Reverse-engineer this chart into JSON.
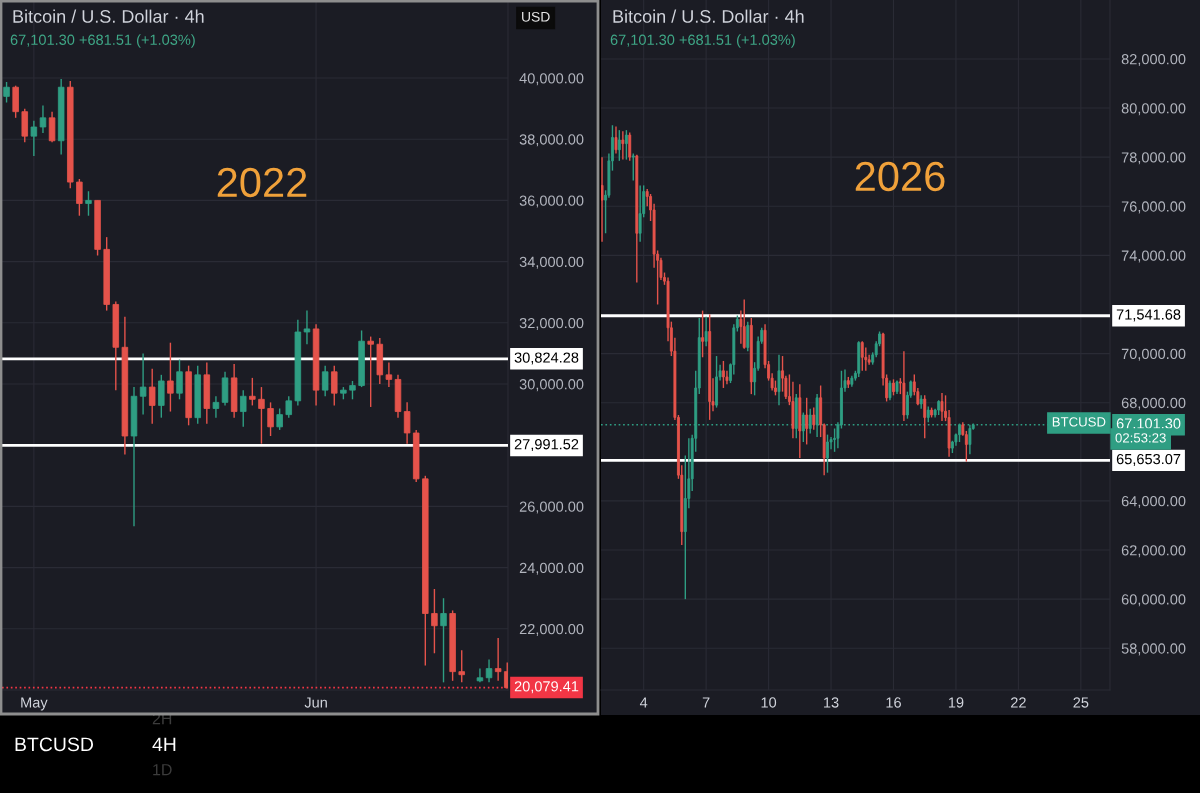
{
  "chart_data": [
    {
      "type": "candlestick",
      "title": "Bitcoin / U.S. Dollar · 4h",
      "subtitle": "67,101.30 +681.51 (+1.03%)",
      "x": [
        "2022-04-28",
        "2022-04-29",
        "2022-04-30",
        "2022-05-01",
        "2022-05-02",
        "2022-05-03",
        "2022-05-04",
        "2022-05-05",
        "2022-05-06",
        "2022-05-07",
        "2022-05-08",
        "2022-05-09",
        "2022-05-10",
        "2022-05-11",
        "2022-05-12",
        "2022-05-13",
        "2022-05-14",
        "2022-05-15",
        "2022-05-16",
        "2022-05-17",
        "2022-05-18",
        "2022-05-19",
        "2022-05-20",
        "2022-05-21",
        "2022-05-22",
        "2022-05-23",
        "2022-05-24",
        "2022-05-25",
        "2022-05-26",
        "2022-05-27",
        "2022-05-28",
        "2022-05-29",
        "2022-05-30",
        "2022-05-31",
        "2022-06-01",
        "2022-06-02",
        "2022-06-03",
        "2022-06-04",
        "2022-06-05",
        "2022-06-06",
        "2022-06-07",
        "2022-06-08",
        "2022-06-09",
        "2022-06-10",
        "2022-06-11",
        "2022-06-12",
        "2022-06-13",
        "2022-06-14",
        "2022-06-15",
        "2022-06-16",
        "2022-06-17",
        "2022-06-19",
        "2022-06-20",
        "2022-06-21",
        "2022-06-22"
      ],
      "ohlc": [
        [
          39400,
          39870,
          39200,
          39700
        ],
        [
          39700,
          39750,
          38700,
          38900
        ],
        [
          38900,
          39000,
          37900,
          38100
        ],
        [
          38100,
          38600,
          37450,
          38400
        ],
        [
          38400,
          39100,
          38200,
          38700
        ],
        [
          38700,
          38900,
          37900,
          37950
        ],
        [
          37950,
          39970,
          37500,
          39700
        ],
        [
          39700,
          39900,
          36400,
          36600
        ],
        [
          36600,
          36700,
          35500,
          35900
        ],
        [
          35900,
          36300,
          35500,
          36000
        ],
        [
          36000,
          36000,
          34200,
          34400
        ],
        [
          34400,
          34800,
          32400,
          32600
        ],
        [
          32600,
          32700,
          29800,
          31200
        ],
        [
          31200,
          32200,
          27700,
          28300
        ],
        [
          28300,
          29900,
          25350,
          29600
        ],
        [
          29600,
          31000,
          29000,
          29900
        ],
        [
          29900,
          30500,
          28700,
          29300
        ],
        [
          29300,
          30300,
          28900,
          30100
        ],
        [
          30100,
          31350,
          29100,
          29700
        ],
        [
          29700,
          30800,
          29500,
          30400
        ],
        [
          30400,
          30600,
          28650,
          28900
        ],
        [
          28900,
          30600,
          28700,
          30300
        ],
        [
          30300,
          30700,
          28700,
          29200
        ],
        [
          29200,
          29600,
          28900,
          29400
        ],
        [
          29400,
          30400,
          29300,
          30200
        ],
        [
          30200,
          30650,
          28900,
          29100
        ],
        [
          29100,
          29800,
          28600,
          29600
        ],
        [
          29600,
          30200,
          29300,
          29500
        ],
        [
          29500,
          29900,
          28050,
          29200
        ],
        [
          29200,
          29400,
          28300,
          28600
        ],
        [
          28600,
          29200,
          28500,
          29000
        ],
        [
          29000,
          29600,
          28900,
          29450
        ],
        [
          29450,
          32100,
          29300,
          31700
        ],
        [
          31700,
          32400,
          31300,
          31800
        ],
        [
          31800,
          31950,
          29300,
          29800
        ],
        [
          29800,
          30600,
          29600,
          30400
        ],
        [
          30400,
          30600,
          29300,
          29700
        ],
        [
          29700,
          29900,
          29500,
          29800
        ],
        [
          29800,
          30100,
          29500,
          29950
        ],
        [
          29950,
          31750,
          29900,
          31400
        ],
        [
          31400,
          31550,
          29250,
          31300
        ],
        [
          31300,
          31500,
          30000,
          30300
        ],
        [
          30300,
          30700,
          29900,
          30150
        ],
        [
          30150,
          30300,
          28900,
          29100
        ],
        [
          29100,
          29400,
          28050,
          28400
        ],
        [
          28400,
          28500,
          26800,
          26900
        ],
        [
          26900,
          27000,
          20800,
          22500
        ],
        [
          22500,
          23300,
          21200,
          22100
        ],
        [
          22100,
          23000,
          20250,
          22500
        ],
        [
          22500,
          22600,
          20300,
          20600
        ],
        [
          20600,
          21300,
          20250,
          20500
        ],
        [
          20300,
          20700,
          20250,
          20400
        ],
        [
          20400,
          21000,
          20250,
          20700
        ],
        [
          20700,
          21700,
          20300,
          20600
        ],
        [
          20600,
          20900,
          20050,
          20079.41
        ]
      ],
      "xlim": [
        "2022-04-27T12:00",
        "2022-06-22T02:00"
      ],
      "xticks": [
        {
          "value": "2022-05-01",
          "label": "May"
        },
        {
          "value": "2022-06-01",
          "label": "Jun"
        }
      ],
      "ylim": [
        20000,
        42550
      ],
      "yticks": [
        {
          "value": 22000,
          "label": "22,000.00"
        },
        {
          "value": 24000,
          "label": "24,000.00"
        },
        {
          "value": 26000,
          "label": "26,000.00"
        },
        {
          "value": 30000,
          "label": "30,000.00"
        },
        {
          "value": 32000,
          "label": "32,000.00"
        },
        {
          "value": 34000,
          "label": "34,000.00"
        },
        {
          "value": 36000,
          "label": "36,000.00"
        },
        {
          "value": 38000,
          "label": "38,000.00"
        },
        {
          "value": 40000,
          "label": "40,000.00"
        }
      ],
      "grid": true,
      "ref_lines": [
        {
          "axis": "y",
          "value": 30824.28,
          "label": "30,824.28",
          "color": "#ffffff"
        },
        {
          "axis": "y",
          "value": 27991.52,
          "label": "27,991.52",
          "color": "#ffffff"
        },
        {
          "axis": "y",
          "value": 20079.41,
          "label": "20,079.41",
          "color": "#f23645",
          "line_style": "dotted"
        }
      ],
      "annotations": [
        "2022",
        "USD",
        "BTCUSD",
        "4H",
        "2H",
        "1D"
      ]
    },
    {
      "type": "candlestick",
      "title": "Bitcoin / U.S. Dollar · 4h",
      "subtitle": "67,101.30 +681.51 (+1.03%)",
      "x": [
        2,
        2.17,
        2.33,
        2.5,
        2.67,
        2.83,
        3,
        3.17,
        3.33,
        3.5,
        3.67,
        3.83,
        4,
        4.17,
        4.33,
        4.5,
        4.67,
        4.83,
        5,
        5.17,
        5.33,
        5.5,
        5.67,
        5.83,
        6,
        6.17,
        6.33,
        6.5,
        6.67,
        6.83,
        7,
        7.17,
        7.33,
        7.5,
        7.67,
        7.83,
        8,
        8.17,
        8.33,
        8.5,
        8.67,
        8.83,
        9,
        9.17,
        9.33,
        9.5,
        9.67,
        9.83,
        10,
        10.17,
        10.33,
        10.5,
        10.67,
        10.83,
        11,
        11.17,
        11.33,
        11.5,
        11.67,
        11.83,
        12,
        12.17,
        12.33,
        12.5,
        12.67,
        12.83,
        13,
        13.17,
        13.33,
        13.5,
        13.67,
        13.83,
        14,
        14.17,
        14.33,
        14.5,
        14.67,
        14.83,
        15,
        15.17,
        15.33,
        15.5,
        15.67,
        15.83,
        16,
        16.17,
        16.33,
        16.5,
        16.67,
        16.83,
        17,
        17.17,
        17.33,
        17.5,
        17.67,
        17.83,
        18,
        18.17,
        18.33,
        18.5,
        18.67,
        18.83,
        19,
        19.17,
        19.33,
        19.5,
        19.67,
        19.83
      ],
      "ohlc": [
        [
          76850,
          78000,
          74550,
          76250
        ],
        [
          76250,
          76650,
          74900,
          76450
        ],
        [
          76450,
          78150,
          76350,
          77850
        ],
        [
          77850,
          79300,
          77450,
          78800
        ],
        [
          78800,
          79250,
          78150,
          78300
        ],
        [
          78300,
          79100,
          77850,
          78700
        ],
        [
          78700,
          79050,
          77900,
          78550
        ],
        [
          78550,
          79100,
          77900,
          78900
        ],
        [
          78900,
          79000,
          77850,
          78000
        ],
        [
          78000,
          78150,
          77050,
          78050
        ],
        [
          78050,
          78100,
          72900,
          74900
        ],
        [
          74900,
          76850,
          74550,
          75700
        ],
        [
          75700,
          76850,
          75550,
          76600
        ],
        [
          76600,
          76700,
          76000,
          76400
        ],
        [
          76400,
          76500,
          75400,
          75850
        ],
        [
          75850,
          76100,
          73500,
          74050
        ],
        [
          74050,
          74200,
          72000,
          73800
        ],
        [
          73800,
          73900,
          73000,
          73100
        ],
        [
          73100,
          73300,
          72800,
          72950
        ],
        [
          72950,
          73100,
          70500,
          71050
        ],
        [
          71050,
          71300,
          69900,
          70100
        ],
        [
          70100,
          70650,
          67300,
          67400
        ],
        [
          67400,
          67500,
          64900,
          65050
        ],
        [
          65050,
          65450,
          62200,
          62750
        ],
        [
          62750,
          65850,
          60000,
          64100
        ],
        [
          64100,
          66550,
          63700,
          64900
        ],
        [
          64900,
          66700,
          64400,
          66550
        ],
        [
          66550,
          69300,
          66000,
          68600
        ],
        [
          68600,
          71450,
          68350,
          70650
        ],
        [
          70650,
          71750,
          69850,
          70500
        ],
        [
          70500,
          71500,
          70300,
          70900
        ],
        [
          70900,
          71600,
          67300,
          68050
        ],
        [
          68050,
          69000,
          67650,
          67900
        ],
        [
          67900,
          69900,
          67800,
          69050
        ],
        [
          69050,
          69550,
          68900,
          69300
        ],
        [
          69300,
          69700,
          68600,
          69050
        ],
        [
          69050,
          69300,
          68750,
          68900
        ],
        [
          68900,
          69600,
          68800,
          69550
        ],
        [
          69550,
          71200,
          69150,
          71050
        ],
        [
          71050,
          71550,
          70900,
          71400
        ],
        [
          71400,
          71750,
          70400,
          71100
        ],
        [
          71100,
          72200,
          70200,
          70250
        ],
        [
          70250,
          71300,
          70100,
          71150
        ],
        [
          71150,
          71450,
          68350,
          68850
        ],
        [
          68850,
          69650,
          68300,
          69400
        ],
        [
          69400,
          70700,
          69300,
          70500
        ],
        [
          70500,
          71050,
          70400,
          70950
        ],
        [
          70950,
          71200,
          69400,
          69550
        ],
        [
          69550,
          69700,
          68900,
          69000
        ],
        [
          69000,
          69200,
          68500,
          68600
        ],
        [
          68600,
          68900,
          68300,
          68450
        ],
        [
          68450,
          69950,
          67900,
          69300
        ],
        [
          69300,
          69900,
          68450,
          69000
        ],
        [
          69000,
          69100,
          68150,
          68250
        ],
        [
          68250,
          69150,
          67900,
          68050
        ],
        [
          68050,
          68850,
          66550,
          66950
        ],
        [
          66950,
          68350,
          66550,
          68200
        ],
        [
          68200,
          68750,
          65750,
          66850
        ],
        [
          66850,
          67600,
          66400,
          67500
        ],
        [
          67500,
          68200,
          66300,
          66950
        ],
        [
          66950,
          67750,
          66750,
          67500
        ],
        [
          67500,
          67800,
          66900,
          67100
        ],
        [
          67100,
          68350,
          66600,
          68200
        ],
        [
          68200,
          68700,
          66600,
          67100
        ],
        [
          67100,
          67150,
          65050,
          65750
        ],
        [
          65750,
          66700,
          65150,
          66400
        ],
        [
          66400,
          66600,
          66100,
          66500
        ],
        [
          66500,
          66950,
          66000,
          66550
        ],
        [
          66550,
          67200,
          66150,
          67100
        ],
        [
          67100,
          69300,
          66950,
          68600
        ],
        [
          68600,
          69350,
          68450,
          68900
        ],
        [
          68900,
          69050,
          68600,
          68750
        ],
        [
          68750,
          69100,
          68650,
          69000
        ],
        [
          69000,
          69300,
          68900,
          69200
        ],
        [
          69200,
          70500,
          69050,
          70450
        ],
        [
          70450,
          70500,
          69300,
          69850
        ],
        [
          69850,
          70250,
          69300,
          69750
        ],
        [
          69750,
          69950,
          69550,
          69650
        ],
        [
          69650,
          70050,
          69550,
          69950
        ],
        [
          69950,
          70500,
          69850,
          70400
        ],
        [
          70400,
          70900,
          70300,
          70800
        ],
        [
          70800,
          70850,
          68700,
          69000
        ],
        [
          69000,
          69150,
          68050,
          68200
        ],
        [
          68200,
          68900,
          68100,
          68800
        ],
        [
          68800,
          68950,
          68300,
          68450
        ],
        [
          68450,
          68900,
          68350,
          68850
        ],
        [
          68850,
          69000,
          68350,
          68800
        ],
        [
          68800,
          70100,
          67250,
          67500
        ],
        [
          67500,
          68450,
          67350,
          68300
        ],
        [
          68300,
          68900,
          68200,
          68850
        ],
        [
          68850,
          69150,
          68300,
          68450
        ],
        [
          68450,
          68600,
          67900,
          67950
        ],
        [
          67950,
          68300,
          67750,
          68150
        ],
        [
          68150,
          68300,
          66550,
          67400
        ],
        [
          67400,
          67850,
          67200,
          67700
        ],
        [
          67700,
          67800,
          67400,
          67500
        ],
        [
          67500,
          67750,
          67400,
          67700
        ],
        [
          67700,
          68100,
          67500,
          68050
        ],
        [
          68050,
          68400,
          67250,
          67650
        ],
        [
          67650,
          68300,
          67250,
          67400
        ],
        [
          67400,
          67700,
          65800,
          66150
        ],
        [
          66150,
          66450,
          65950,
          66400
        ],
        [
          66400,
          66750,
          66250,
          66700
        ],
        [
          66700,
          67150,
          66400,
          67100
        ],
        [
          67100,
          67200,
          66650,
          66700
        ],
        [
          66700,
          66850,
          65600,
          66300
        ],
        [
          66300,
          67100,
          65900,
          66950
        ],
        [
          66950,
          67150,
          66900,
          67101.3
        ]
      ],
      "xlim": [
        1.95,
        26.4
      ],
      "xticks": [
        4,
        7,
        10,
        13,
        16,
        19,
        22,
        25
      ],
      "ylim": [
        56300,
        84400
      ],
      "yticks": [
        {
          "value": 58000,
          "label": "58,000.00"
        },
        {
          "value": 60000,
          "label": "60,000.00"
        },
        {
          "value": 62000,
          "label": "62,000.00"
        },
        {
          "value": 64000,
          "label": "64,000.00"
        },
        {
          "value": 68000,
          "label": "68,000.00"
        },
        {
          "value": 70000,
          "label": "70,000.00"
        },
        {
          "value": 74000,
          "label": "74,000.00"
        },
        {
          "value": 76000,
          "label": "76,000.00"
        },
        {
          "value": 78000,
          "label": "78,000.00"
        },
        {
          "value": 80000,
          "label": "80,000.00"
        },
        {
          "value": 82000,
          "label": "82,000.00"
        }
      ],
      "grid": true,
      "ref_lines": [
        {
          "axis": "y",
          "value": 71541.68,
          "label": "71,541.68",
          "color": "#ffffff"
        },
        {
          "axis": "y",
          "value": 65653.07,
          "label": "65,653.07",
          "color": "#ffffff"
        },
        {
          "axis": "y",
          "value": 67101.3,
          "label": "67,101.30",
          "color": "#2f9e83",
          "line_style": "dotted"
        }
      ],
      "annotations": [
        "2026",
        "BTCUSD",
        "02:53:23"
      ]
    }
  ]
}
